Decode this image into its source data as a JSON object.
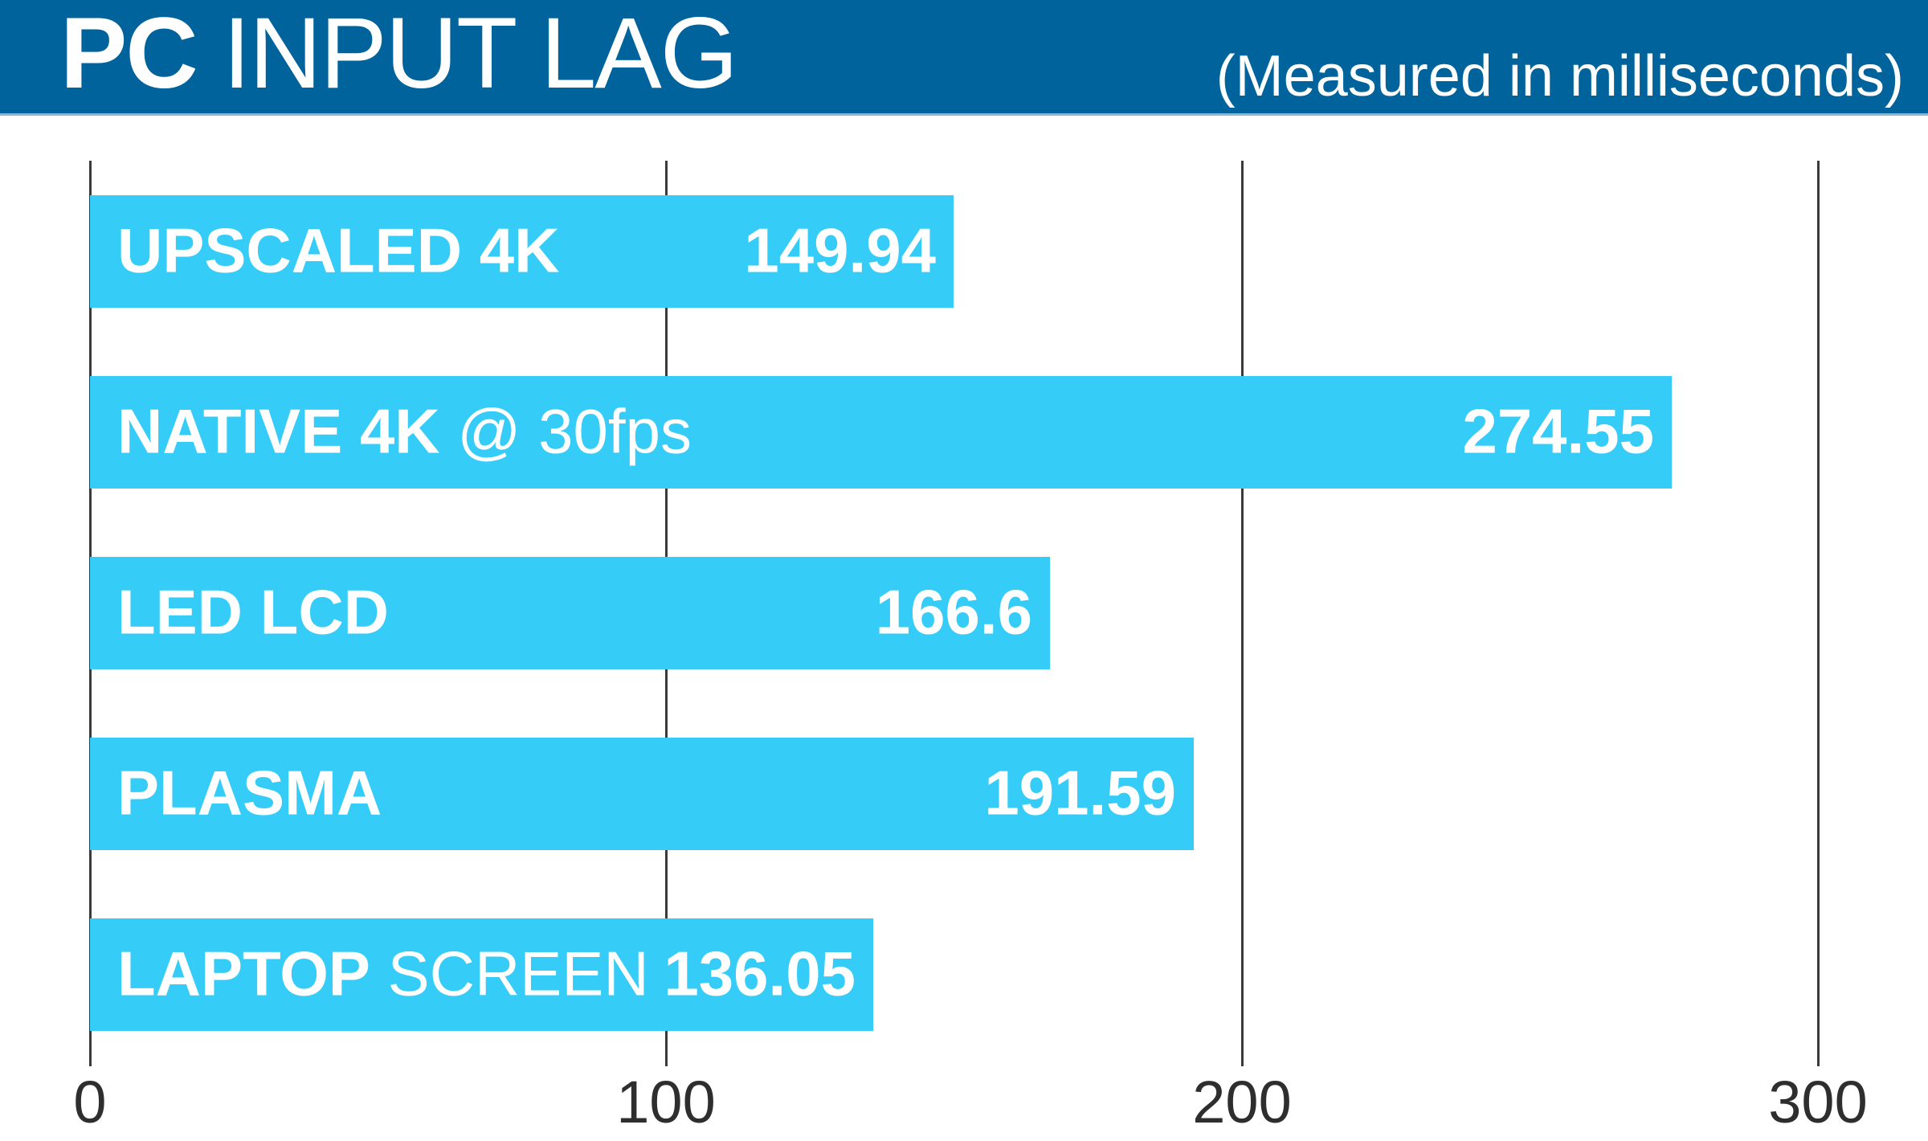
{
  "header": {
    "title_strong": "PC",
    "title_light": " INPUT LAG",
    "subtitle": "(Measured in milliseconds)"
  },
  "chart_data": {
    "type": "bar",
    "orientation": "horizontal",
    "title": "PC INPUT LAG",
    "subtitle": "(Measured in milliseconds)",
    "unit": "milliseconds",
    "xlim": [
      0,
      319
    ],
    "x_ticks": [
      0,
      100,
      200,
      300
    ],
    "x_tick_labels": [
      "0",
      "100",
      "200",
      "300"
    ],
    "grid": "vertical",
    "categories": [
      "UPSCALED 4K",
      "NATIVE 4K @ 30fps",
      "LED LCD",
      "PLASMA",
      "LAPTOP SCREEN"
    ],
    "values": [
      149.94,
      274.55,
      166.6,
      191.59,
      136.05
    ],
    "bars": [
      {
        "label_strong": "UPSCALED 4K",
        "label_light": "",
        "value": 149.94,
        "value_label": "149.94"
      },
      {
        "label_strong": "NATIVE 4K",
        "label_light": " @ 30fps",
        "value": 274.55,
        "value_label": "274.55"
      },
      {
        "label_strong": "LED LCD",
        "label_light": "",
        "value": 166.6,
        "value_label": "166.6"
      },
      {
        "label_strong": "PLASMA",
        "label_light": "",
        "value": 191.59,
        "value_label": "191.59"
      },
      {
        "label_strong": "LAPTOP",
        "label_light": " SCREEN",
        "value": 136.05,
        "value_label": "136.05"
      }
    ],
    "colors": {
      "bar": "#35ccf7",
      "header_bg": "#01639c",
      "header_border": "#8db7cf",
      "gridline": "#3a3a3a",
      "tick_text": "#2e2e2e",
      "bar_text": "#ffffff",
      "title_text": "#ffffff",
      "background": "#ffffff"
    }
  }
}
